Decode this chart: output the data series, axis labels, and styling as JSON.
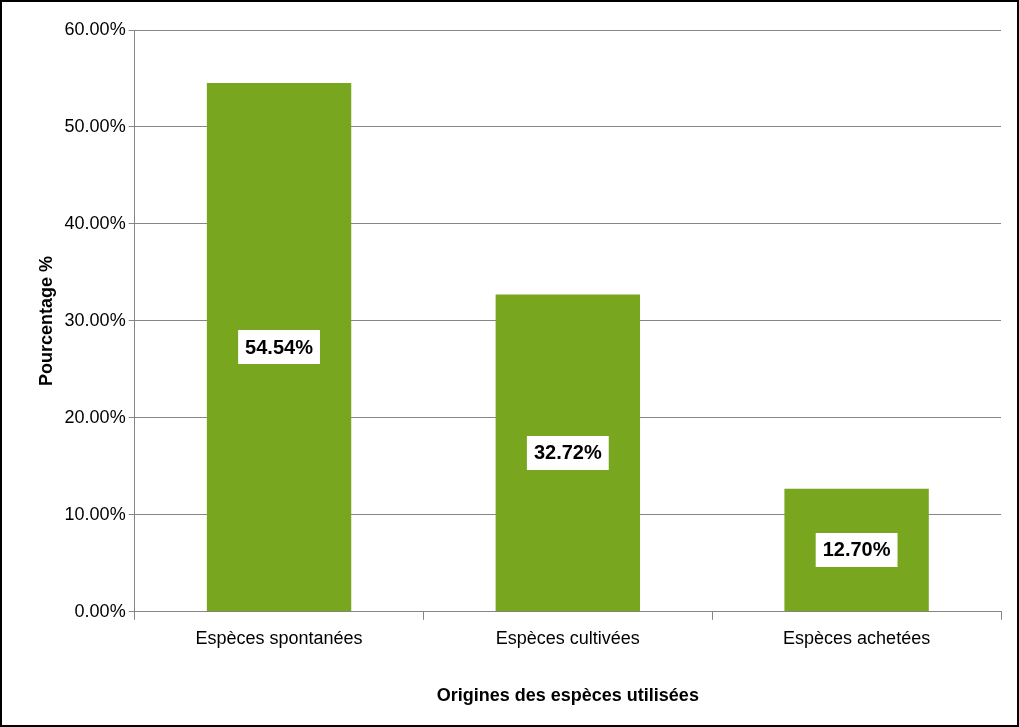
{
  "chart_data": {
    "type": "bar",
    "xlabel": "Origines des espèces utilisées",
    "ylabel": "Pourcentage %",
    "categories": [
      "Espèces spontanées",
      "Espèces cultivées",
      "Espèces achetées"
    ],
    "values": [
      54.54,
      32.72,
      12.7
    ],
    "color": "#78a61e",
    "value_labels": [
      "54.54%",
      "32.72%",
      "12.70%"
    ],
    "ylim": [
      0,
      60
    ],
    "yticks": [
      {
        "value": 0,
        "label": "0.00%"
      },
      {
        "value": 10,
        "label": "10.00%"
      },
      {
        "value": 20,
        "label": "20.00%"
      },
      {
        "value": 30,
        "label": "30.00%"
      },
      {
        "value": 40,
        "label": "40.00%"
      },
      {
        "value": 50,
        "label": "50.00%"
      },
      {
        "value": 60,
        "label": "60.00%"
      }
    ],
    "grid": "y",
    "legend": false
  }
}
